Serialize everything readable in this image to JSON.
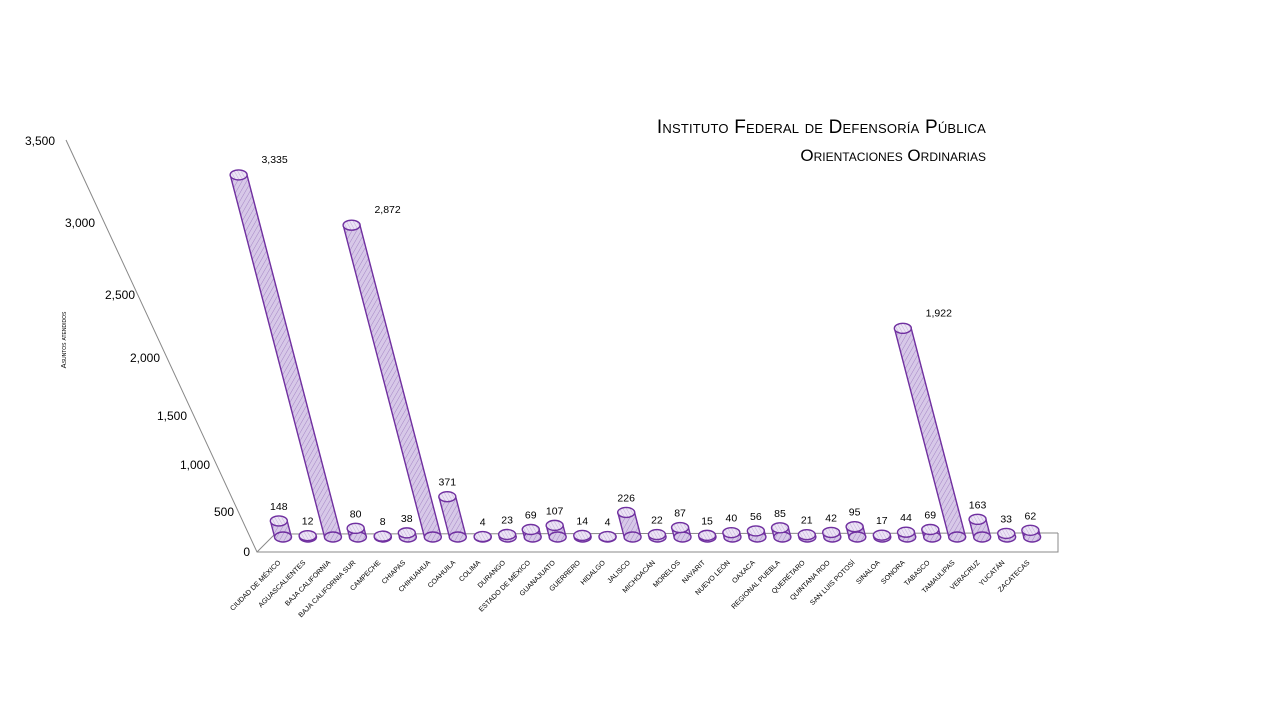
{
  "chart_title": {
    "line1": "Instituto Federal de Defensoría Pública",
    "line2": "Orientaciones Ordinarias"
  },
  "colors": {
    "bar_edge": "#7030a0",
    "bar_fill": "#c9b3df",
    "bar_top": "#ece4f5",
    "axis": "#888888"
  },
  "chart_data": {
    "type": "bar",
    "title": "Instituto Federal de Defensoría Pública — Orientaciones Ordinarias",
    "xlabel": "",
    "ylabel": "Asuntos atendidos",
    "ylim": [
      0,
      3500
    ],
    "yticks": [
      "0",
      "500",
      "1,000",
      "1,500",
      "2,000",
      "2,500",
      "3,000",
      "3,500"
    ],
    "categories": [
      "Ciudad de México",
      "Aguascalientes",
      "Baja California",
      "Baja California Sur",
      "Campeche",
      "Chiapas",
      "Chihuahua",
      "Coahuila",
      "Colima",
      "Durango",
      "Estado de México",
      "Guanajuato",
      "Guerrero",
      "Hidalgo",
      "Jalisco",
      "Michoacán",
      "Morelos",
      "Nayarit",
      "Nuevo León",
      "Oaxaca",
      "Regional Puebla",
      "Querétaro",
      "Quintana Roo",
      "San Luis Potosí",
      "Sinaloa",
      "Sonora",
      "Tabasco",
      "Tamaulipas",
      "Veracruz",
      "Yucatán",
      "Zacatecas"
    ],
    "values": [
      148,
      12,
      3335,
      80,
      8,
      38,
      2872,
      371,
      4,
      23,
      69,
      107,
      14,
      4,
      226,
      22,
      87,
      15,
      40,
      56,
      85,
      21,
      42,
      95,
      17,
      44,
      69,
      1922,
      163,
      33,
      62
    ],
    "value_labels": [
      "148",
      "12",
      "3,335",
      "80",
      "8",
      "38",
      "2,872",
      "371",
      "4",
      "23",
      "69",
      "107",
      "14",
      "4",
      "226",
      "22",
      "87",
      "15",
      "40",
      "56",
      "85",
      "21",
      "42",
      "95",
      "17",
      "44",
      "69",
      "1,922",
      "163",
      "33",
      "62"
    ],
    "grid": false,
    "legend": "none",
    "style": "3d-cylinder"
  }
}
